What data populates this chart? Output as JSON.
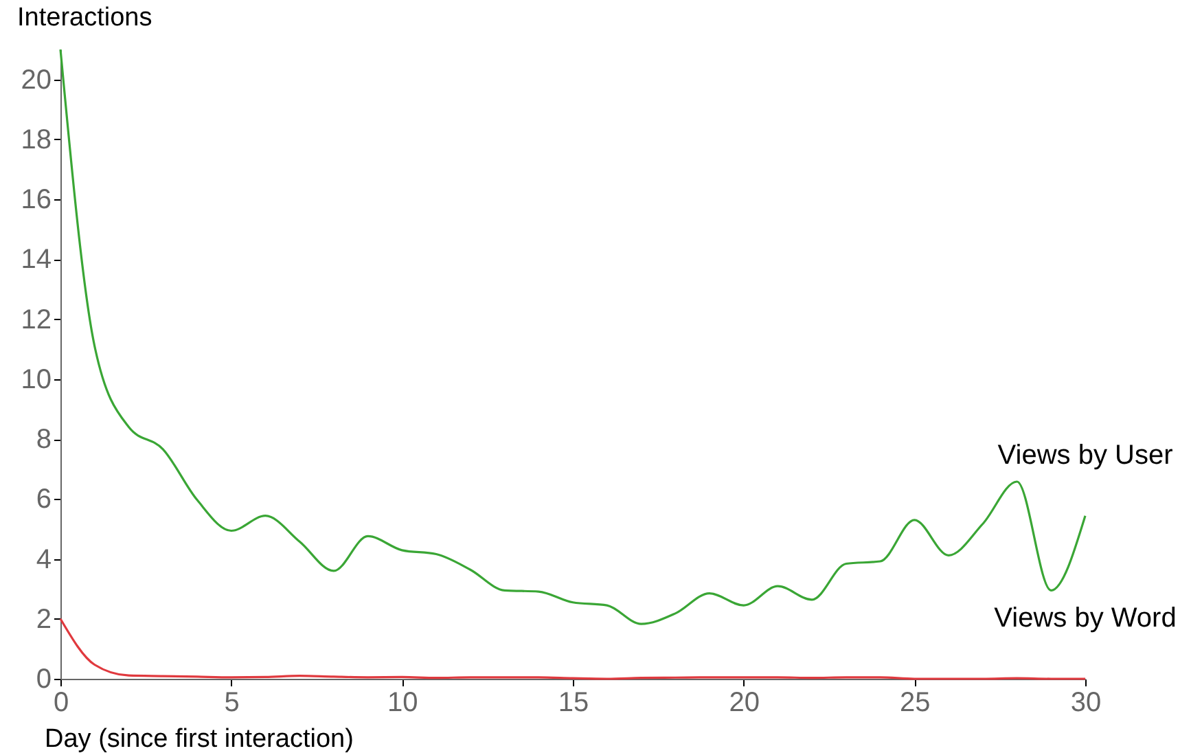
{
  "chart_data": {
    "type": "line",
    "xlabel": "Day (since first interaction)",
    "ylabel": "Interactions",
    "x": [
      0,
      1,
      2,
      3,
      4,
      5,
      6,
      7,
      8,
      9,
      10,
      11,
      12,
      13,
      14,
      15,
      16,
      17,
      18,
      19,
      20,
      21,
      22,
      23,
      24,
      25,
      26,
      27,
      28,
      29,
      30
    ],
    "series": [
      {
        "name": "Views by User",
        "color": "#3aa635",
        "values": [
          21,
          11.1,
          8.4,
          7.66,
          5.97,
          4.94,
          5.44,
          4.58,
          3.6,
          4.76,
          4.29,
          4.16,
          3.64,
          2.95,
          2.91,
          2.55,
          2.45,
          1.83,
          2.18,
          2.85,
          2.45,
          3.09,
          2.64,
          3.84,
          3.92,
          5.3,
          4.12,
          5.17,
          6.58,
          2.95,
          5.44
        ]
      },
      {
        "name": "Views by Word",
        "color": "#e0393e",
        "values": [
          2,
          0.47,
          0.11,
          0.09,
          0.07,
          0.05,
          0.06,
          0.1,
          0.07,
          0.05,
          0.06,
          0.03,
          0.05,
          0.05,
          0.05,
          0.02,
          0,
          0.03,
          0.04,
          0.05,
          0.05,
          0.05,
          0.03,
          0.05,
          0.05,
          0,
          0,
          0,
          0.02,
          0,
          0
        ]
      }
    ],
    "xlim": [
      0,
      30
    ],
    "xticks": [
      0,
      5,
      10,
      15,
      20,
      25,
      30
    ],
    "ylim": [
      0,
      21
    ],
    "yticks": [
      0,
      2,
      4,
      6,
      8,
      10,
      12,
      14,
      16,
      18,
      20
    ],
    "grid": false,
    "legend": false,
    "marker": "none",
    "line_style": "solid"
  }
}
